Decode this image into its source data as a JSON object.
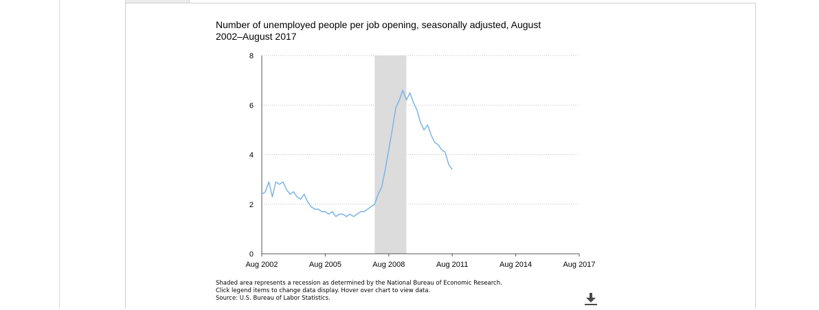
{
  "notes": {
    "line1": "Shaded area represents a recession as determined by the National Bureau of Economic Research.",
    "line2": "Click legend items to change data display. Hover over chart to view data.",
    "line3": "Source: U.S. Bureau of Labor Statistics."
  },
  "download": {
    "icon": "download-icon"
  },
  "colors": {
    "line": "#7ab3e6",
    "recession": "#dcdcdc",
    "grid": "#bbbbbb"
  },
  "chart_data": {
    "type": "line",
    "title": "Number of unemployed people per job opening, seasonally adjusted, August 2002–August 2017",
    "xlabel": "",
    "ylabel": "",
    "ylim": [
      0,
      8
    ],
    "yticks": [
      "0",
      "2",
      "4",
      "6",
      "8"
    ],
    "xticks": [
      "Aug 2002",
      "Aug 2005",
      "Aug 2008",
      "Aug 2011",
      "Aug 2014",
      "Aug 2017"
    ],
    "xlim": [
      "2002-08",
      "2017-08"
    ],
    "grid": "horizontal dotted",
    "recession": {
      "start": "2007-12",
      "end": "2009-06"
    },
    "series": [
      {
        "name": "",
        "x": [
          "2002-08",
          "2002-10",
          "2002-12",
          "2003-02",
          "2003-04",
          "2003-06",
          "2003-08",
          "2003-10",
          "2003-12",
          "2004-02",
          "2004-04",
          "2004-06",
          "2004-08",
          "2004-10",
          "2004-12",
          "2005-02",
          "2005-04",
          "2005-06",
          "2005-08",
          "2005-10",
          "2005-12",
          "2006-02",
          "2006-04",
          "2006-06",
          "2006-08",
          "2006-10",
          "2006-12",
          "2007-02",
          "2007-04",
          "2007-06",
          "2007-08",
          "2007-10",
          "2007-12",
          "2008-02",
          "2008-04",
          "2008-06",
          "2008-08",
          "2008-10",
          "2008-12",
          "2009-02",
          "2009-04",
          "2009-06",
          "2009-08",
          "2009-10",
          "2009-12",
          "2010-02",
          "2010-04",
          "2010-06",
          "2010-08",
          "2010-10",
          "2010-12",
          "2011-02",
          "2011-04",
          "2011-06",
          "2011-08"
        ],
        "values": [
          2.4,
          2.5,
          2.9,
          2.3,
          2.9,
          2.8,
          2.9,
          2.6,
          2.4,
          2.5,
          2.3,
          2.2,
          2.4,
          2.1,
          1.9,
          1.8,
          1.8,
          1.7,
          1.7,
          1.6,
          1.7,
          1.5,
          1.6,
          1.6,
          1.5,
          1.6,
          1.5,
          1.6,
          1.7,
          1.7,
          1.8,
          1.9,
          2.0,
          2.4,
          2.7,
          3.4,
          4.2,
          5.0,
          5.9,
          6.2,
          6.6,
          6.2,
          6.5,
          6.1,
          5.8,
          5.3,
          5.0,
          5.2,
          4.8,
          4.5,
          4.4,
          4.2,
          4.1,
          3.6,
          3.4
        ]
      }
    ]
  }
}
